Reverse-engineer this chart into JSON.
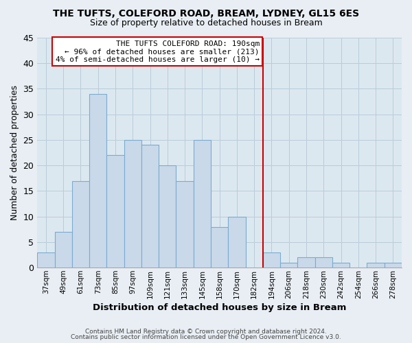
{
  "title": "THE TUFTS, COLEFORD ROAD, BREAM, LYDNEY, GL15 6ES",
  "subtitle": "Size of property relative to detached houses in Bream",
  "xlabel": "Distribution of detached houses by size in Bream",
  "ylabel": "Number of detached properties",
  "bin_labels": [
    "37sqm",
    "49sqm",
    "61sqm",
    "73sqm",
    "85sqm",
    "97sqm",
    "109sqm",
    "121sqm",
    "133sqm",
    "145sqm",
    "158sqm",
    "170sqm",
    "182sqm",
    "194sqm",
    "206sqm",
    "218sqm",
    "230sqm",
    "242sqm",
    "254sqm",
    "266sqm",
    "278sqm"
  ],
  "bar_values": [
    3,
    7,
    17,
    34,
    22,
    25,
    24,
    20,
    17,
    25,
    8,
    10,
    0,
    3,
    1,
    2,
    2,
    1,
    0,
    1,
    1
  ],
  "bar_color": "#c9d9ea",
  "bar_edgecolor": "#7aabcf",
  "vline_color": "#cc0000",
  "annotation_title": "THE TUFTS COLEFORD ROAD: 190sqm",
  "annotation_line1": "← 96% of detached houses are smaller (213)",
  "annotation_line2": "4% of semi-detached houses are larger (10) →",
  "annotation_box_edgecolor": "#cc0000",
  "ylim": [
    0,
    45
  ],
  "yticks": [
    0,
    5,
    10,
    15,
    20,
    25,
    30,
    35,
    40,
    45
  ],
  "footnote1": "Contains HM Land Registry data © Crown copyright and database right 2024.",
  "footnote2": "Contains public sector information licensed under the Open Government Licence v3.0.",
  "bg_color": "#e8eef4",
  "plot_bg_color": "#dce8f0",
  "grid_color": "#b8ccd8"
}
